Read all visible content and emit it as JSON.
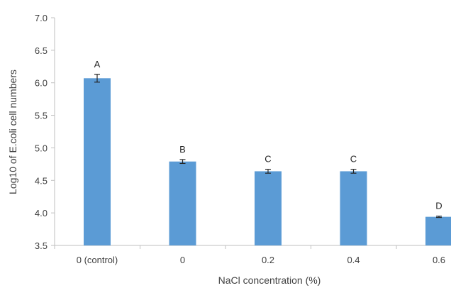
{
  "chart_data": {
    "type": "bar",
    "title": "",
    "xlabel": "NaCl concentration (%)",
    "ylabel": "Log10 of E.coli cell numbers",
    "ylim": [
      3.5,
      7.0
    ],
    "yticks": [
      "3.5",
      "4.0",
      "4.5",
      "5.0",
      "5.5",
      "6.0",
      "6.5",
      "7.0"
    ],
    "categories": [
      "0 (control)",
      "0",
      "0.2",
      "0.4",
      "0.6"
    ],
    "values": [
      6.07,
      4.79,
      4.64,
      4.64,
      3.94
    ],
    "errors": [
      0.06,
      0.03,
      0.03,
      0.03,
      0.01
    ],
    "group_labels": [
      "A",
      "B",
      "C",
      "C",
      "D"
    ],
    "bar_color": "#5B9BD5",
    "grid": false,
    "legend": "none"
  }
}
